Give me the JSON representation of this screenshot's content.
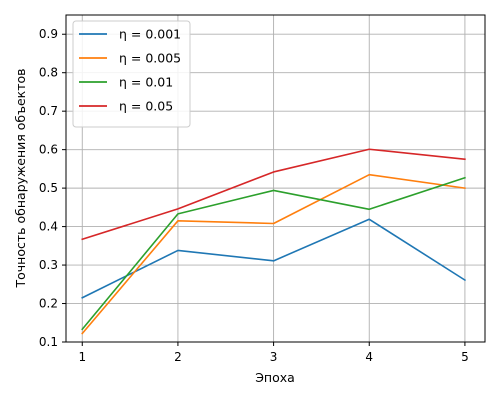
{
  "chart_data": {
    "type": "line",
    "title": "",
    "xlabel": "Эпоха",
    "ylabel": "Точность обнаружения объектов",
    "x": [
      1,
      2,
      3,
      4,
      5
    ],
    "xticks": [
      "1",
      "2",
      "3",
      "4",
      "5"
    ],
    "xlim": [
      0.83,
      5.21
    ],
    "ylim": [
      0.1,
      0.95
    ],
    "yticks": [
      "0.1",
      "0.2",
      "0.3",
      "0.4",
      "0.5",
      "0.6",
      "0.7",
      "0.8",
      "0.9"
    ],
    "grid": true,
    "legend_position": "top-left",
    "series": [
      {
        "name": "η = 0.001",
        "color": "#1f77b4",
        "values": [
          0.215,
          0.338,
          0.311,
          0.419,
          0.261
        ]
      },
      {
        "name": "η = 0.005",
        "color": "#ff7f0e",
        "values": [
          0.122,
          0.415,
          0.408,
          0.535,
          0.5
        ]
      },
      {
        "name": "η = 0.01",
        "color": "#2ca02c",
        "values": [
          0.133,
          0.433,
          0.494,
          0.445,
          0.527
        ]
      },
      {
        "name": "η = 0.05",
        "color": "#d62728",
        "values": [
          0.367,
          0.446,
          0.542,
          0.601,
          0.575
        ]
      }
    ]
  }
}
